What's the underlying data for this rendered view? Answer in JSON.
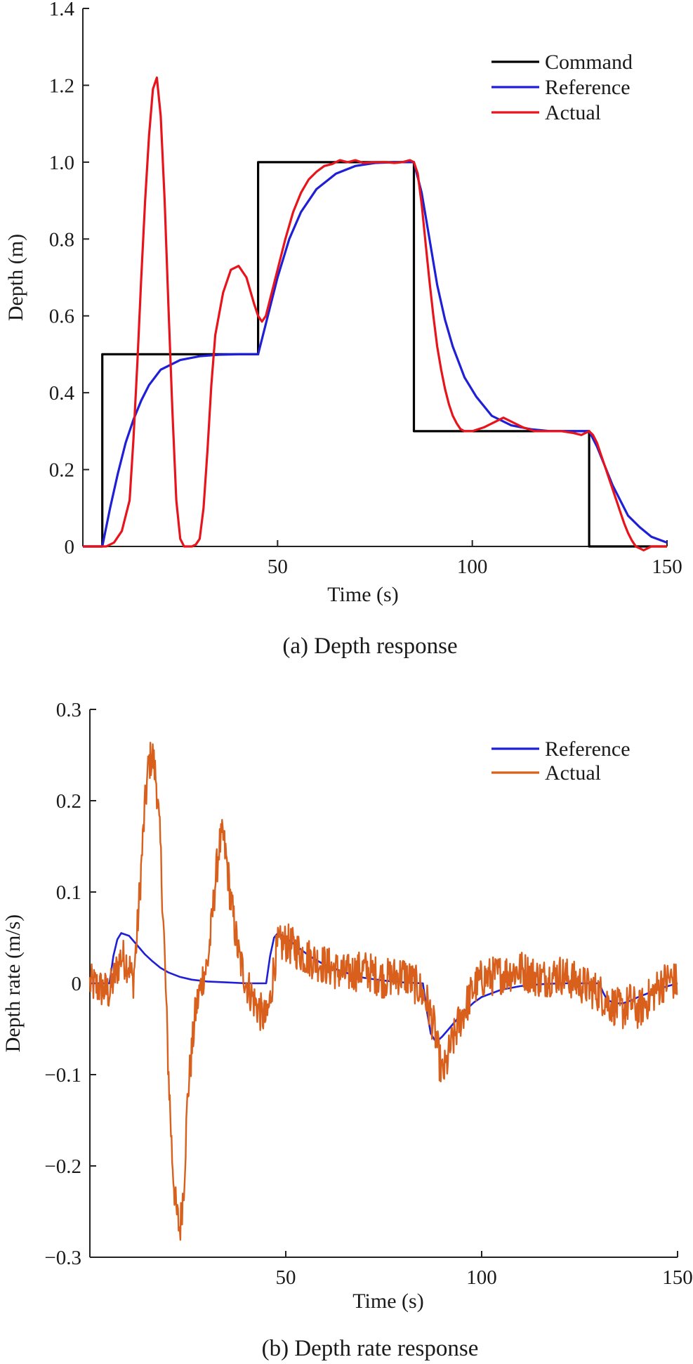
{
  "chart_data": [
    {
      "type": "line",
      "caption": "(a) Depth response",
      "xlabel": "Time (s)",
      "ylabel": "Depth (m)",
      "xlim": [
        0,
        150
      ],
      "ylim": [
        0,
        1.4
      ],
      "xticks": [
        50,
        100,
        150
      ],
      "xtick_labels": [
        "50",
        "100",
        "150"
      ],
      "yticks": [
        0,
        0.2,
        0.4,
        0.6,
        0.8,
        1.0,
        1.2,
        1.4
      ],
      "ytick_labels": [
        "0",
        "0.2",
        "0.4",
        "0.6",
        "0.8",
        "1.0",
        "1.2",
        "1.4"
      ],
      "grid": false,
      "legend_position": "top-right",
      "series": [
        {
          "name": "Command",
          "color": "#000000",
          "x": [
            0,
            5,
            5,
            45,
            45,
            85,
            85,
            130,
            130,
            150
          ],
          "y": [
            0,
            0,
            0.5,
            0.5,
            1.0,
            1.0,
            0.3,
            0.3,
            0,
            0
          ]
        },
        {
          "name": "Reference",
          "color": "#1f1fd6",
          "x": [
            0,
            5,
            7,
            9,
            11,
            13,
            15,
            17,
            20,
            25,
            30,
            35,
            40,
            45,
            47,
            50,
            53,
            56,
            60,
            65,
            70,
            75,
            80,
            85,
            87,
            89,
            91,
            93,
            95,
            98,
            101,
            105,
            110,
            115,
            120,
            125,
            130,
            132,
            134,
            136,
            138,
            140,
            143,
            146,
            150
          ],
          "y": [
            0,
            0,
            0.1,
            0.19,
            0.27,
            0.33,
            0.38,
            0.42,
            0.46,
            0.485,
            0.495,
            0.499,
            0.5,
            0.5,
            0.58,
            0.7,
            0.8,
            0.87,
            0.93,
            0.97,
            0.99,
            0.998,
            1.0,
            1.0,
            0.92,
            0.8,
            0.68,
            0.59,
            0.52,
            0.44,
            0.39,
            0.34,
            0.315,
            0.305,
            0.3,
            0.3,
            0.3,
            0.26,
            0.21,
            0.16,
            0.12,
            0.08,
            0.05,
            0.025,
            0.01
          ]
        },
        {
          "name": "Actual",
          "color": "#e8141c",
          "x": [
            0,
            6,
            8,
            10,
            12,
            13,
            14,
            15,
            16,
            17,
            18,
            19,
            20,
            21,
            22,
            23,
            24,
            25,
            26,
            28,
            29,
            30,
            31,
            32,
            33,
            34,
            36,
            38,
            40,
            42,
            44,
            45,
            46,
            47,
            48,
            50,
            52,
            54,
            56,
            58,
            60,
            62,
            64,
            66,
            68,
            70,
            72,
            75,
            78,
            80,
            82,
            84,
            85,
            86,
            87,
            88,
            89,
            90,
            91,
            92,
            93,
            94,
            95,
            96,
            97,
            98,
            100,
            103,
            106,
            108,
            110,
            113,
            116,
            120,
            123,
            126,
            128,
            130,
            131,
            132,
            133,
            134,
            135,
            136,
            137,
            138,
            139,
            140,
            141,
            142,
            143,
            144,
            145,
            146,
            148,
            150
          ],
          "y": [
            0,
            0,
            0.01,
            0.04,
            0.12,
            0.28,
            0.48,
            0.7,
            0.9,
            1.07,
            1.19,
            1.22,
            1.12,
            0.9,
            0.62,
            0.35,
            0.12,
            0.02,
            0,
            0,
            0.005,
            0.02,
            0.1,
            0.25,
            0.42,
            0.55,
            0.66,
            0.72,
            0.73,
            0.7,
            0.63,
            0.6,
            0.585,
            0.6,
            0.64,
            0.72,
            0.8,
            0.87,
            0.92,
            0.955,
            0.975,
            0.99,
            0.995,
            1.005,
            1.0,
            1.005,
            0.998,
            1.0,
            1.0,
            0.998,
            1.0,
            1.005,
            1.0,
            0.97,
            0.89,
            0.79,
            0.69,
            0.6,
            0.52,
            0.46,
            0.41,
            0.37,
            0.34,
            0.32,
            0.305,
            0.3,
            0.3,
            0.31,
            0.325,
            0.335,
            0.325,
            0.31,
            0.3,
            0.3,
            0.3,
            0.295,
            0.29,
            0.3,
            0.29,
            0.27,
            0.24,
            0.21,
            0.18,
            0.15,
            0.12,
            0.09,
            0.06,
            0.035,
            0.015,
            0.0,
            -0.005,
            -0.01,
            -0.005,
            0,
            0,
            0
          ]
        }
      ]
    },
    {
      "type": "line",
      "caption": "(b) Depth rate response",
      "xlabel": "Time (s)",
      "ylabel": "Depth rate (m/s)",
      "xlim": [
        0,
        150
      ],
      "ylim": [
        -0.3,
        0.3
      ],
      "xticks": [
        50,
        100,
        150
      ],
      "xtick_labels": [
        "50",
        "100",
        "150"
      ],
      "yticks": [
        -0.3,
        -0.2,
        -0.1,
        0,
        0.1,
        0.2,
        0.3
      ],
      "ytick_labels": [
        "−0.3",
        "−0.2",
        "−0.1",
        "0",
        "0.1",
        "0.2",
        "0.3"
      ],
      "grid": false,
      "legend_position": "top-right",
      "series": [
        {
          "name": "Reference",
          "color": "#1f1fd6",
          "x": [
            0,
            5,
            6,
            7,
            8,
            10,
            12,
            14,
            16,
            18,
            20,
            23,
            26,
            30,
            35,
            40,
            45,
            46,
            47,
            48,
            50,
            53,
            56,
            60,
            65,
            70,
            75,
            80,
            85,
            86,
            87,
            88,
            89,
            90,
            92,
            94,
            96,
            98,
            100,
            105,
            110,
            115,
            120,
            125,
            130,
            131,
            132,
            134,
            136,
            138,
            140,
            143,
            146,
            150
          ],
          "y": [
            0,
            0,
            0.03,
            0.048,
            0.055,
            0.052,
            0.042,
            0.032,
            0.024,
            0.017,
            0.012,
            0.007,
            0.004,
            0.002,
            0.001,
            0,
            0,
            0.03,
            0.05,
            0.055,
            0.05,
            0.04,
            0.03,
            0.02,
            0.012,
            0.006,
            0.003,
            0.001,
            0,
            -0.03,
            -0.055,
            -0.062,
            -0.062,
            -0.058,
            -0.048,
            -0.038,
            -0.029,
            -0.021,
            -0.015,
            -0.007,
            -0.003,
            -0.001,
            0,
            0,
            0,
            -0.01,
            -0.018,
            -0.022,
            -0.022,
            -0.019,
            -0.015,
            -0.01,
            -0.005,
            0
          ]
        },
        {
          "name": "Actual",
          "color": "#d95f1c",
          "x": [
            0,
            5,
            8,
            10,
            11,
            12,
            13,
            14,
            15,
            16,
            17,
            18,
            19,
            20,
            21,
            22,
            23,
            24,
            25,
            27,
            29,
            30,
            31,
            32,
            33,
            34,
            35,
            36,
            37,
            38,
            40,
            42,
            44,
            45,
            46,
            47,
            48,
            50,
            55,
            60,
            65,
            70,
            75,
            80,
            84,
            86,
            88,
            89,
            90,
            91,
            92,
            93,
            94,
            96,
            98,
            100,
            105,
            110,
            115,
            120,
            125,
            130,
            132,
            134,
            136,
            138,
            140,
            142,
            144,
            146,
            148,
            150
          ],
          "y": [
            0,
            -0.01,
            0.03,
            0.02,
            0.0,
            0.05,
            0.12,
            0.19,
            0.24,
            0.25,
            0.22,
            0.15,
            0.04,
            -0.09,
            -0.19,
            -0.25,
            -0.27,
            -0.22,
            -0.12,
            -0.03,
            0.01,
            0.02,
            0.06,
            0.11,
            0.15,
            0.16,
            0.13,
            0.09,
            0.06,
            0.03,
            0.0,
            -0.02,
            -0.035,
            -0.04,
            -0.02,
            0.02,
            0.04,
            0.045,
            0.03,
            0.02,
            0.01,
            0.015,
            0.005,
            0.01,
            -0.005,
            -0.02,
            -0.05,
            -0.08,
            -0.1,
            -0.09,
            -0.07,
            -0.06,
            -0.045,
            -0.025,
            -0.005,
            0.005,
            0.01,
            0.015,
            0.005,
            0.01,
            0.0,
            -0.01,
            -0.02,
            -0.025,
            -0.03,
            -0.02,
            -0.03,
            -0.02,
            -0.01,
            0.0,
            0.005,
            0.0
          ],
          "noise_amplitude": 0.022
        }
      ]
    }
  ]
}
